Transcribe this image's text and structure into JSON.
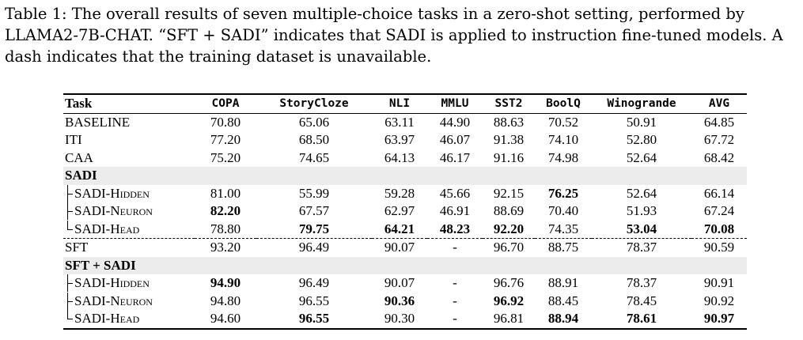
{
  "caption": {
    "text": "Table 1:  The overall results of seven multiple-choice tasks in a zero-shot setting, performed by LLAMA2-7B-CHAT. “SFT + SADI” indicates that SADI is applied to instruction fine-tuned models. A dash indicates that the training dataset is unavailable."
  },
  "table": {
    "headers": [
      "Task",
      "COPA",
      "StoryCloze",
      "NLI",
      "MMLU",
      "SST2",
      "BoolQ",
      "Winogrande",
      "AVG"
    ],
    "rows": {
      "baseline": {
        "name": "BASELINE",
        "values": [
          "70.80",
          "65.06",
          "63.11",
          "44.90",
          "88.63",
          "70.52",
          "50.91",
          "64.85"
        ]
      },
      "iti": {
        "name": "ITI",
        "values": [
          "77.20",
          "68.50",
          "63.97",
          "46.07",
          "91.38",
          "74.10",
          "52.80",
          "67.72"
        ]
      },
      "caa": {
        "name": "CAA",
        "values": [
          "75.20",
          "74.65",
          "64.13",
          "46.17",
          "91.16",
          "74.98",
          "52.64",
          "68.42"
        ]
      },
      "group_sadi": {
        "name": "SADI"
      },
      "sadi_hidden": {
        "name": "SADI-Hidden",
        "values": [
          "81.00",
          "55.99",
          "59.28",
          "45.66",
          "92.15",
          "76.25",
          "52.64",
          "66.14"
        ]
      },
      "sadi_neuron": {
        "name": "SADI-Neuron",
        "values": [
          "82.20",
          "67.57",
          "62.97",
          "46.91",
          "88.69",
          "70.40",
          "51.93",
          "67.24"
        ]
      },
      "sadi_head": {
        "name": "SADI-Head",
        "values": [
          "78.80",
          "79.75",
          "64.21",
          "48.23",
          "92.20",
          "74.35",
          "53.04",
          "70.08"
        ]
      },
      "sft": {
        "name": "SFT",
        "values": [
          "93.20",
          "96.49",
          "90.07",
          "-",
          "96.70",
          "88.75",
          "78.37",
          "90.59"
        ]
      },
      "group_sft_sadi": {
        "name": "SFT + SADI"
      },
      "sft_sadi_hidden": {
        "name": "SADI-Hidden",
        "values": [
          "94.90",
          "96.49",
          "90.07",
          "-",
          "96.76",
          "88.91",
          "78.37",
          "90.91"
        ]
      },
      "sft_sadi_neuron": {
        "name": "SADI-Neuron",
        "values": [
          "94.80",
          "96.55",
          "90.36",
          "-",
          "96.92",
          "88.45",
          "78.45",
          "90.92"
        ]
      },
      "sft_sadi_head": {
        "name": "SADI-Head",
        "values": [
          "94.60",
          "96.55",
          "90.30",
          "-",
          "96.81",
          "88.94",
          "78.61",
          "90.97"
        ]
      }
    }
  }
}
